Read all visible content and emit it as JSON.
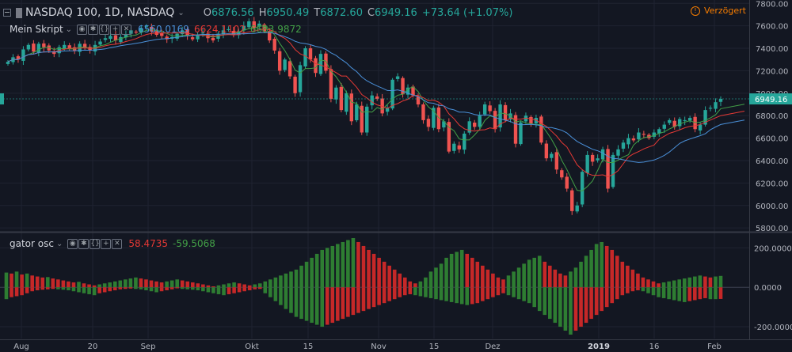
{
  "header": {
    "symbol": "NASDAQ 100, 1D, NASDAQ",
    "o_label": "O",
    "o_val": "6876.56",
    "h_label": "H",
    "h_val": "6950.49",
    "l_label": "T",
    "l_val": "6872.60",
    "c_label": "C",
    "c_val": "6949.16",
    "change": "+73.64 (+1.07%)",
    "delay_label": "Verzögert",
    "delay_icon": "warning-icon"
  },
  "indicator1": {
    "name": "Mein Skript",
    "v1": "6560.0169",
    "v2": "6624.1102",
    "v3": "6683.9872"
  },
  "indicator2": {
    "name": "gator osc",
    "v1": "58.4735",
    "v2": "-59.5068"
  },
  "toolbar_icons": [
    "eye-icon",
    "settings-icon",
    "source-icon",
    "add-icon",
    "close-icon"
  ],
  "colors": {
    "up": "#26a69a",
    "down": "#ef5350",
    "sma_fast": "#43a047",
    "sma_mid": "#e53935",
    "sma_slow": "#4a90d9",
    "last_price": "#26a69a"
  },
  "chart_data": [
    {
      "type": "candlestick",
      "title": "NASDAQ 100, 1D, NASDAQ",
      "x_ticks": [
        "Aug",
        "20",
        "Sep",
        "Okt",
        "15",
        "Nov",
        "15",
        "Dez",
        "2019",
        "16",
        "Feb"
      ],
      "y_ticks": [
        "5800.00",
        "6000.00",
        "6200.00",
        "6400.00",
        "6600.00",
        "6800.00",
        "7000.00",
        "7200.00",
        "7400.00",
        "7600.00",
        "7800.00"
      ],
      "ylim": [
        5780,
        7830
      ],
      "last_price": "6949.16",
      "close": [
        7280,
        7320,
        7300,
        7390,
        7430,
        7370,
        7440,
        7410,
        7380,
        7350,
        7410,
        7430,
        7400,
        7380,
        7440,
        7400,
        7380,
        7430,
        7460,
        7490,
        7510,
        7470,
        7500,
        7520,
        7560,
        7540,
        7580,
        7600,
        7550,
        7520,
        7510,
        7480,
        7500,
        7530,
        7560,
        7510,
        7480,
        7520,
        7540,
        7490,
        7470,
        7530,
        7560,
        7570,
        7520,
        7550,
        7600,
        7640,
        7580,
        7620,
        7550,
        7470,
        7380,
        7200,
        7300,
        7150,
        7000,
        7250,
        7400,
        7300,
        7180,
        7350,
        7200,
        6950,
        7050,
        6850,
        7000,
        6750,
        6900,
        6650,
        6880,
        6980,
        6950,
        6820,
        6870,
        7120,
        7150,
        6990,
        7050,
        6980,
        6900,
        6760,
        6700,
        6870,
        6680,
        6750,
        6480,
        6550,
        6500,
        6640,
        6750,
        6700,
        6800,
        6900,
        6840,
        6680,
        6900,
        6760,
        6820,
        6550,
        6740,
        6800,
        6730,
        6780,
        6560,
        6420,
        6460,
        6320,
        6250,
        6150,
        5950,
        6000,
        6300,
        6450,
        6390,
        6420,
        6500,
        6150,
        6450,
        6500,
        6560,
        6600,
        6580,
        6650,
        6630,
        6600,
        6650,
        6680,
        6720,
        6760,
        6700,
        6770,
        6760,
        6780,
        6680,
        6720,
        6850,
        6870,
        6920,
        6949
      ]
    },
    {
      "type": "bar",
      "title": "gator osc",
      "y_ticks": [
        "-200.0000",
        "0.0000",
        "200.0000"
      ],
      "ylim": [
        -260,
        270
      ],
      "upper_ref": [
        75,
        70,
        80,
        65,
        70,
        60,
        55,
        50,
        52,
        45,
        40,
        35,
        30,
        25,
        28,
        20,
        15,
        10,
        15,
        20,
        25,
        30,
        35,
        40,
        45,
        50,
        45,
        40,
        35,
        30,
        25,
        30,
        35,
        40,
        35,
        30,
        25,
        20,
        15,
        10,
        5,
        10,
        15,
        20,
        25,
        20,
        15,
        10,
        15,
        20,
        30,
        40,
        50,
        60,
        70,
        80,
        90,
        110,
        130,
        150,
        170,
        190,
        200,
        210,
        220,
        230,
        240,
        250,
        230,
        210,
        190,
        170,
        150,
        130,
        110,
        90,
        70,
        50,
        30,
        20,
        30,
        50,
        80,
        100,
        120,
        150,
        170,
        180,
        190,
        170,
        150,
        130,
        110,
        90,
        70,
        50,
        40,
        60,
        80,
        100,
        120,
        140,
        150,
        160,
        130,
        110,
        90,
        70,
        60,
        80,
        100,
        130,
        160,
        190,
        220,
        230,
        210,
        190,
        160,
        130,
        110,
        90,
        70,
        50,
        40,
        30,
        20,
        25,
        30,
        35,
        40,
        45,
        50,
        55,
        60,
        55,
        50,
        55,
        58
      ],
      "lower_ref": [
        -60,
        -50,
        -45,
        -40,
        -30,
        -20,
        -15,
        -12,
        -10,
        -8,
        -10,
        -12,
        -15,
        -20,
        -25,
        -30,
        -35,
        -40,
        -30,
        -25,
        -20,
        -15,
        -10,
        -8,
        -6,
        -8,
        -10,
        -15,
        -20,
        -25,
        -20,
        -15,
        -10,
        -5,
        -8,
        -10,
        -12,
        -15,
        -20,
        -25,
        -30,
        -35,
        -40,
        -35,
        -30,
        -25,
        -20,
        -15,
        -10,
        -8,
        -30,
        -50,
        -70,
        -90,
        -110,
        -130,
        -150,
        -160,
        -170,
        -180,
        -190,
        -200,
        -190,
        -180,
        -170,
        -160,
        -150,
        -140,
        -130,
        -120,
        -110,
        -100,
        -90,
        -80,
        -70,
        -60,
        -50,
        -40,
        -35,
        -40,
        -45,
        -50,
        -55,
        -60,
        -65,
        -70,
        -75,
        -80,
        -85,
        -90,
        -85,
        -80,
        -70,
        -60,
        -50,
        -40,
        -30,
        -40,
        -50,
        -60,
        -70,
        -80,
        -100,
        -120,
        -140,
        -160,
        -180,
        -200,
        -220,
        -240,
        -220,
        -200,
        -180,
        -160,
        -140,
        -120,
        -100,
        -80,
        -60,
        -40,
        -30,
        -20,
        -15,
        -20,
        -30,
        -40,
        -50,
        -55,
        -60,
        -65,
        -70,
        -75,
        -70,
        -65,
        -60,
        -55,
        -60,
        -60,
        -59
      ]
    }
  ]
}
